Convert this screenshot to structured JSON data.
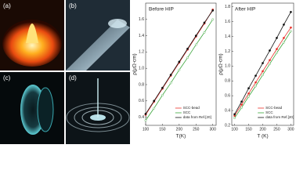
{
  "panels": [
    "(a)",
    "(b)",
    "(c)",
    "(d)"
  ],
  "chart_data": [
    {
      "type": "line",
      "title": "Before HIP",
      "x_label": "T(K)",
      "y_label": "ρ(μΩ-cm)",
      "x": [
        100,
        125,
        150,
        175,
        200,
        225,
        250,
        275,
        300
      ],
      "series": [
        {
          "name": "SCC-bead",
          "color": "#e8322b",
          "values": [
            0.43,
            0.59,
            0.75,
            0.91,
            1.07,
            1.23,
            1.39,
            1.55,
            1.72
          ]
        },
        {
          "name": "SCC",
          "color": "#3aa53a",
          "values": [
            0.36,
            0.51,
            0.67,
            0.82,
            0.98,
            1.13,
            1.29,
            1.44,
            1.6
          ]
        },
        {
          "name": "data from Ref.[20]",
          "color": "#111111",
          "values": [
            0.44,
            0.6,
            0.76,
            0.92,
            1.08,
            1.24,
            1.4,
            1.56,
            1.71
          ]
        }
      ],
      "xlim": [
        100,
        310
      ],
      "xticks": [
        100,
        150,
        200,
        250,
        300
      ],
      "ylim": [
        0.3,
        1.8
      ],
      "yticks": [
        0.4,
        0.6,
        0.8,
        {
          "value": 1,
          "label": "1.0"
        },
        1.2,
        1.4,
        1.6
      ]
    },
    {
      "type": "line",
      "title": "After HIP",
      "x_label": "T (K)",
      "y_label": "ρ(μΩ-cm)",
      "x": [
        100,
        125,
        150,
        175,
        200,
        225,
        250,
        275,
        300
      ],
      "series": [
        {
          "name": "SCC-bead",
          "color": "#e8322b",
          "values": [
            0.33,
            0.48,
            0.63,
            0.78,
            0.93,
            1.08,
            1.23,
            1.38,
            1.52
          ]
        },
        {
          "name": "SCC",
          "color": "#3aa53a",
          "values": [
            0.3,
            0.44,
            0.59,
            0.73,
            0.88,
            1.03,
            1.18,
            1.32,
            1.47
          ]
        },
        {
          "name": "data from Ref.[20]",
          "color": "#111111",
          "values": [
            0.35,
            0.52,
            0.7,
            0.87,
            1.04,
            1.21,
            1.38,
            1.56,
            1.73
          ]
        }
      ],
      "xlim": [
        90,
        310
      ],
      "xticks": [
        100,
        150,
        200,
        250,
        300
      ],
      "ylim": [
        0.2,
        1.85
      ],
      "yticks": [
        0.2,
        0.4,
        0.6,
        0.8,
        {
          "value": 1,
          "label": "1.0"
        },
        1.2,
        1.4,
        1.6,
        1.8
      ]
    }
  ]
}
